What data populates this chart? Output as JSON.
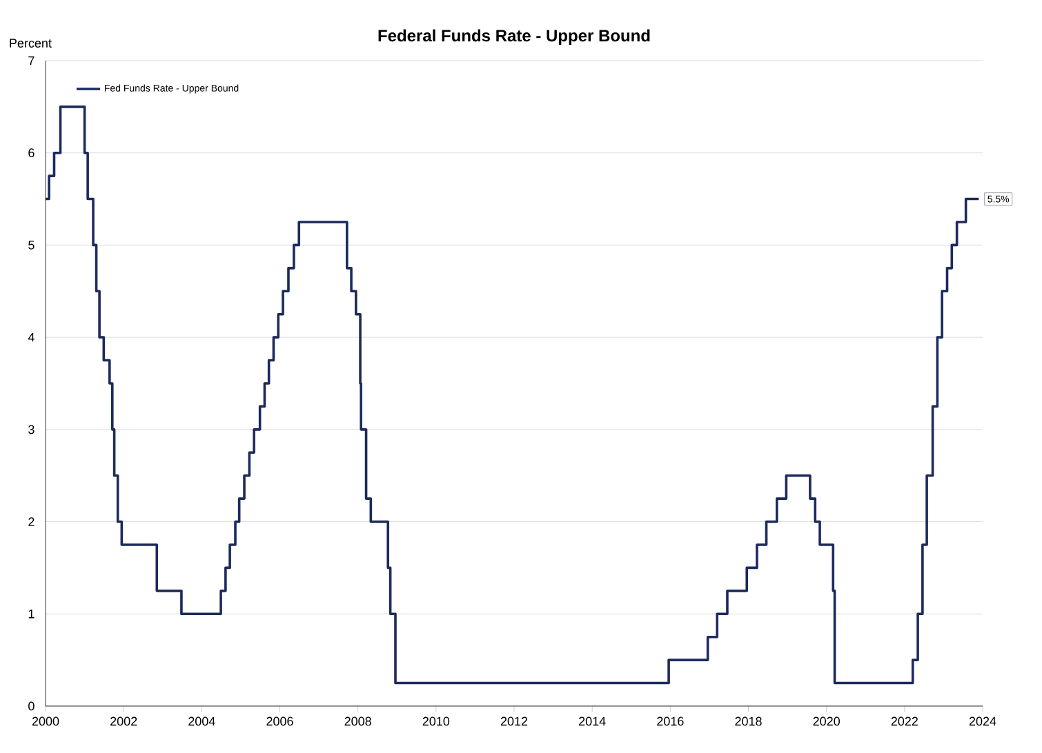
{
  "chart_data": {
    "type": "step",
    "title": "Federal Funds Rate - Upper Bound",
    "ylabel": "Percent",
    "series": [
      {
        "name": "Fed Funds Rate - Upper Bound",
        "color": "#1c2a5c",
        "x": [
          2000.0,
          2000.09,
          2000.22,
          2000.38,
          2001.0,
          2001.08,
          2001.22,
          2001.3,
          2001.38,
          2001.49,
          2001.64,
          2001.71,
          2001.76,
          2001.85,
          2001.95,
          2002.85,
          2003.48,
          2004.49,
          2004.61,
          2004.72,
          2004.86,
          2004.96,
          2005.09,
          2005.22,
          2005.34,
          2005.49,
          2005.61,
          2005.72,
          2005.84,
          2005.96,
          2006.08,
          2006.22,
          2006.36,
          2006.49,
          2007.72,
          2007.83,
          2007.95,
          2008.06,
          2008.08,
          2008.21,
          2008.33,
          2008.77,
          2008.83,
          2008.96,
          2015.96,
          2016.96,
          2017.2,
          2017.46,
          2017.96,
          2018.22,
          2018.46,
          2018.73,
          2018.97,
          2019.58,
          2019.71,
          2019.83,
          2020.17,
          2020.21,
          2022.21,
          2022.34,
          2022.46,
          2022.57,
          2022.72,
          2022.84,
          2022.96,
          2023.09,
          2023.21,
          2023.34,
          2023.57,
          2023.9
        ],
        "values": [
          5.5,
          5.75,
          6.0,
          6.5,
          6.0,
          5.5,
          5.0,
          4.5,
          4.0,
          3.75,
          3.5,
          3.0,
          2.5,
          2.0,
          1.75,
          1.25,
          1.0,
          1.25,
          1.5,
          1.75,
          2.0,
          2.25,
          2.5,
          2.75,
          3.0,
          3.25,
          3.5,
          3.75,
          4.0,
          4.25,
          4.5,
          4.75,
          5.0,
          5.25,
          4.75,
          4.5,
          4.25,
          3.5,
          3.0,
          2.25,
          2.0,
          1.5,
          1.0,
          0.25,
          0.5,
          0.75,
          1.0,
          1.25,
          1.5,
          1.75,
          2.0,
          2.25,
          2.5,
          2.25,
          2.0,
          1.75,
          1.25,
          0.25,
          0.5,
          1.0,
          1.75,
          2.5,
          3.25,
          4.0,
          4.5,
          4.75,
          5.0,
          5.25,
          5.5,
          5.5
        ]
      }
    ],
    "xlim": [
      2000,
      2024
    ],
    "xticks": [
      2000,
      2002,
      2004,
      2006,
      2008,
      2010,
      2012,
      2014,
      2016,
      2018,
      2020,
      2022,
      2024
    ],
    "ylim": [
      0,
      7
    ],
    "yticks": [
      0,
      1,
      2,
      3,
      4,
      5,
      6,
      7
    ],
    "grid": "y",
    "legend": "top left",
    "annotations": [
      {
        "text": "5.5%",
        "x": 2023.9,
        "y": 5.5
      }
    ]
  }
}
